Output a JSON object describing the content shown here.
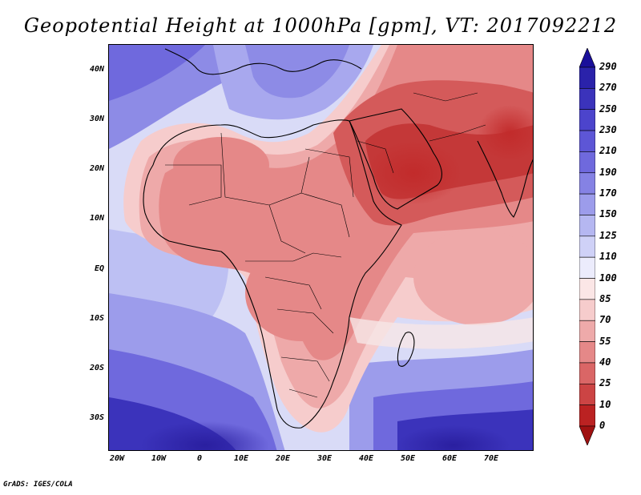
{
  "title": "Geopotential Height at 1000hPa [gpm], VT: 2017092212",
  "credit": "GrADS: IGES/COLA",
  "axes": {
    "lat_labels": [
      "40N",
      "30N",
      "20N",
      "10N",
      "EQ",
      "10S",
      "20S",
      "30S"
    ],
    "lon_labels": [
      "20W",
      "10W",
      "0",
      "10E",
      "20E",
      "30E",
      "40E",
      "50E",
      "60E",
      "70E"
    ]
  },
  "colorbar": {
    "labels": [
      "290",
      "270",
      "250",
      "230",
      "210",
      "190",
      "170",
      "150",
      "125",
      "110",
      "100",
      "85",
      "70",
      "55",
      "40",
      "25",
      "10",
      "0"
    ],
    "colors": [
      "#1a0f9a",
      "#2a22aa",
      "#3b33bb",
      "#4c44cc",
      "#5d56d6",
      "#6f69dd",
      "#8582e4",
      "#9c9ceb",
      "#b5b7f1",
      "#cfd1f7",
      "#ececfc",
      "#fbe6e6",
      "#f6cccc",
      "#eeaaaa",
      "#e58888",
      "#da6666",
      "#cc4444",
      "#bb2222",
      "#a01111"
    ]
  },
  "map": {
    "region": "Africa and Middle East",
    "lon_range": [
      -22,
      80
    ],
    "lat_range": [
      -37,
      45
    ]
  }
}
